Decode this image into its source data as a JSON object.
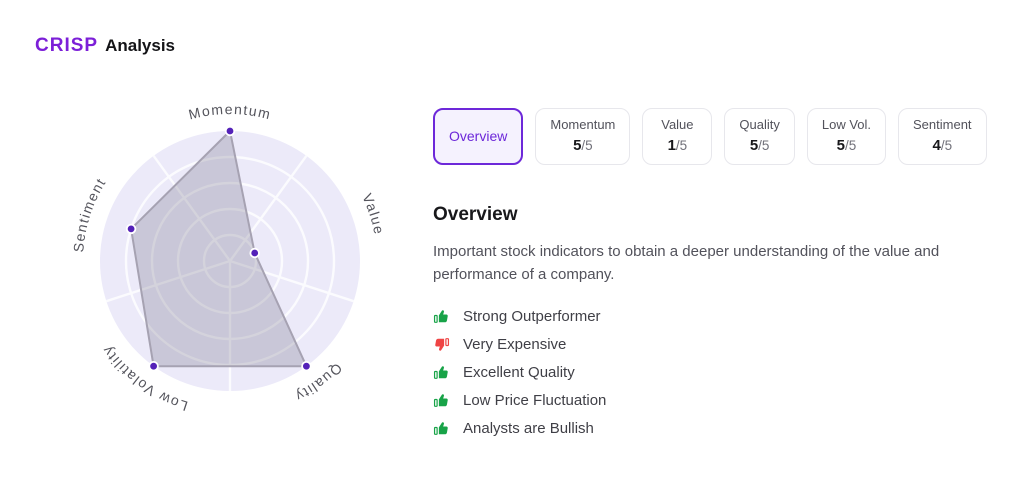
{
  "brand": {
    "logo": "CRISP",
    "title": "Analysis"
  },
  "tabs": [
    {
      "label": "Overview",
      "active": true
    },
    {
      "label": "Momentum",
      "score": "5",
      "max": "/5"
    },
    {
      "label": "Value",
      "score": "1",
      "max": "/5"
    },
    {
      "label": "Quality",
      "score": "5",
      "max": "/5"
    },
    {
      "label": "Low Vol.",
      "score": "5",
      "max": "/5"
    },
    {
      "label": "Sentiment",
      "score": "4",
      "max": "/5"
    }
  ],
  "overview": {
    "heading": "Overview",
    "description": "Important stock indicators to obtain a deeper understanding of the value and performance of a company."
  },
  "highlights": [
    {
      "icon": "thumbs-up",
      "text": "Strong Outperformer"
    },
    {
      "icon": "thumbs-down",
      "text": "Very Expensive"
    },
    {
      "icon": "thumbs-up",
      "text": "Excellent Quality"
    },
    {
      "icon": "thumbs-up",
      "text": "Low Price Fluctuation"
    },
    {
      "icon": "thumbs-up",
      "text": "Analysts are Bullish"
    }
  ],
  "chart_data": {
    "type": "radar",
    "categories": [
      "Momentum",
      "Value",
      "Quality",
      "Low Volatility",
      "Sentiment"
    ],
    "values": [
      5,
      1,
      5,
      5,
      4
    ],
    "max": 5,
    "rings": 5,
    "legend": "none",
    "grid": "circular-white-on-lavender"
  },
  "colors": {
    "accent": "#6D28D9",
    "logo": "#7C1FD8",
    "disc": "#ECEAF9",
    "grid": "#FBFBFE",
    "polygon_fill": "rgba(112,106,134,0.28)",
    "polygon_stroke": "#A6A2B2",
    "dot": "#5421B8",
    "axis_label": "#54545C",
    "positive": "#18A348",
    "negative": "#EF4444"
  }
}
